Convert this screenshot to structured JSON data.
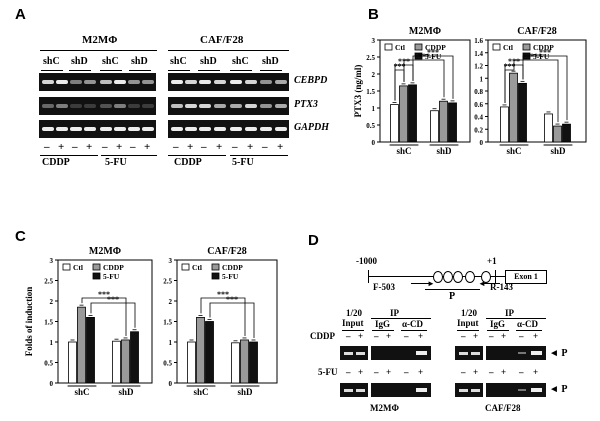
{
  "panels": {
    "A": {
      "label": "A",
      "cells": [
        "M2MΦ",
        "CAF/F28"
      ],
      "shrna": [
        "shC",
        "shD",
        "shC",
        "shD",
        "shC",
        "shD",
        "shC",
        "shD"
      ],
      "genes": [
        "CEBPD",
        "PTX3",
        "GAPDH"
      ],
      "signs": [
        "–",
        "+",
        "–",
        "+",
        "–",
        "+",
        "–",
        "+",
        "–",
        "+",
        "–",
        "+",
        "–",
        "+",
        "–",
        "+"
      ],
      "drugs": [
        "CDDP",
        "5-FU",
        "CDDP",
        "5-FU"
      ]
    },
    "B": {
      "label": "B",
      "ylabel": "PTX3 (ng/ml)",
      "sig": "***"
    },
    "C": {
      "label": "C",
      "ylabel": "Folds of induction",
      "sig": "***"
    },
    "D": {
      "label": "D",
      "coord_start": "-1000",
      "coord_plus1": "+1",
      "exon": "Exon 1",
      "primer_f": "F-503",
      "primer_r": "R-143",
      "product": "P",
      "input": "1/20\nInput",
      "input_l1": "1/20",
      "input_l2": "Input",
      "ip": "IP",
      "igg": "IgG",
      "acd": "α-CD",
      "row_cddp": "CDDP",
      "row_5fu": "5-FU",
      "minus": "–",
      "plus": "+",
      "cell_left": "M2MΦ",
      "cell_right": "CAF/F28",
      "band_label": "◄ P"
    }
  },
  "chart_data": [
    {
      "type": "bar",
      "title": "M2MΦ",
      "ylabel": "PTX3 (ng/ml)",
      "categories": [
        "shC",
        "shD"
      ],
      "series": [
        {
          "name": "Ctl",
          "values": [
            1.1,
            0.92
          ]
        },
        {
          "name": "CDDP",
          "values": [
            1.65,
            1.2
          ]
        },
        {
          "name": "5-FU",
          "values": [
            1.68,
            1.15
          ]
        }
      ],
      "ylim": [
        0,
        3
      ],
      "yticks": [
        0,
        0.5,
        1,
        1.5,
        2,
        2.5,
        3
      ],
      "ytick_labels": [
        "0",
        "0.5",
        "1",
        "1.5",
        "2",
        "2.5",
        "3"
      ],
      "legend": "top-left"
    },
    {
      "type": "bar",
      "title": "CAF/F28",
      "categories": [
        "shC",
        "shD"
      ],
      "series": [
        {
          "name": "Ctl",
          "values": [
            0.55,
            0.44
          ]
        },
        {
          "name": "CDDP",
          "values": [
            1.08,
            0.25
          ]
        },
        {
          "name": "5-FU",
          "values": [
            0.92,
            0.28
          ]
        }
      ],
      "ylim": [
        0,
        1.6
      ],
      "yticks": [
        0,
        0.2,
        0.4,
        0.6,
        0.8,
        1,
        1.2,
        1.4,
        1.6
      ],
      "ytick_labels": [
        "0",
        "0.2",
        "0.4",
        "0.6",
        "0.8",
        "1",
        "1.2",
        "1.4",
        "1.6"
      ],
      "legend": "top-left"
    },
    {
      "type": "bar",
      "title": "M2MΦ",
      "ylabel": "Folds of induction",
      "categories": [
        "shC",
        "shD"
      ],
      "series": [
        {
          "name": "Ctl",
          "values": [
            1.0,
            1.02
          ]
        },
        {
          "name": "CDDP",
          "values": [
            1.85,
            1.05
          ]
        },
        {
          "name": "5-FU",
          "values": [
            1.6,
            1.25
          ]
        }
      ],
      "ylim": [
        0,
        3
      ],
      "yticks": [
        0,
        0.5,
        1,
        1.5,
        2,
        2.5,
        3
      ],
      "ytick_labels": [
        "0",
        "0.5",
        "1",
        "1.5",
        "2",
        "2.5",
        "3"
      ],
      "legend": "top-left"
    },
    {
      "type": "bar",
      "title": "CAF/F28",
      "categories": [
        "shC",
        "shD"
      ],
      "series": [
        {
          "name": "Ctl",
          "values": [
            1.0,
            0.98
          ]
        },
        {
          "name": "CDDP",
          "values": [
            1.6,
            1.05
          ]
        },
        {
          "name": "5-FU",
          "values": [
            1.5,
            1.0
          ]
        }
      ],
      "ylim": [
        0,
        3
      ],
      "yticks": [
        0,
        0.5,
        1,
        1.5,
        2,
        2.5,
        3
      ],
      "ytick_labels": [
        "0",
        "0.5",
        "1",
        "1.5",
        "2",
        "2.5",
        "3"
      ],
      "legend": "top-left"
    }
  ],
  "colors": {
    "ctl": "#ffffff",
    "cddp": "#9a9a9a",
    "fu": "#111111",
    "gel": "#111111",
    "band": "#eeeeee"
  }
}
